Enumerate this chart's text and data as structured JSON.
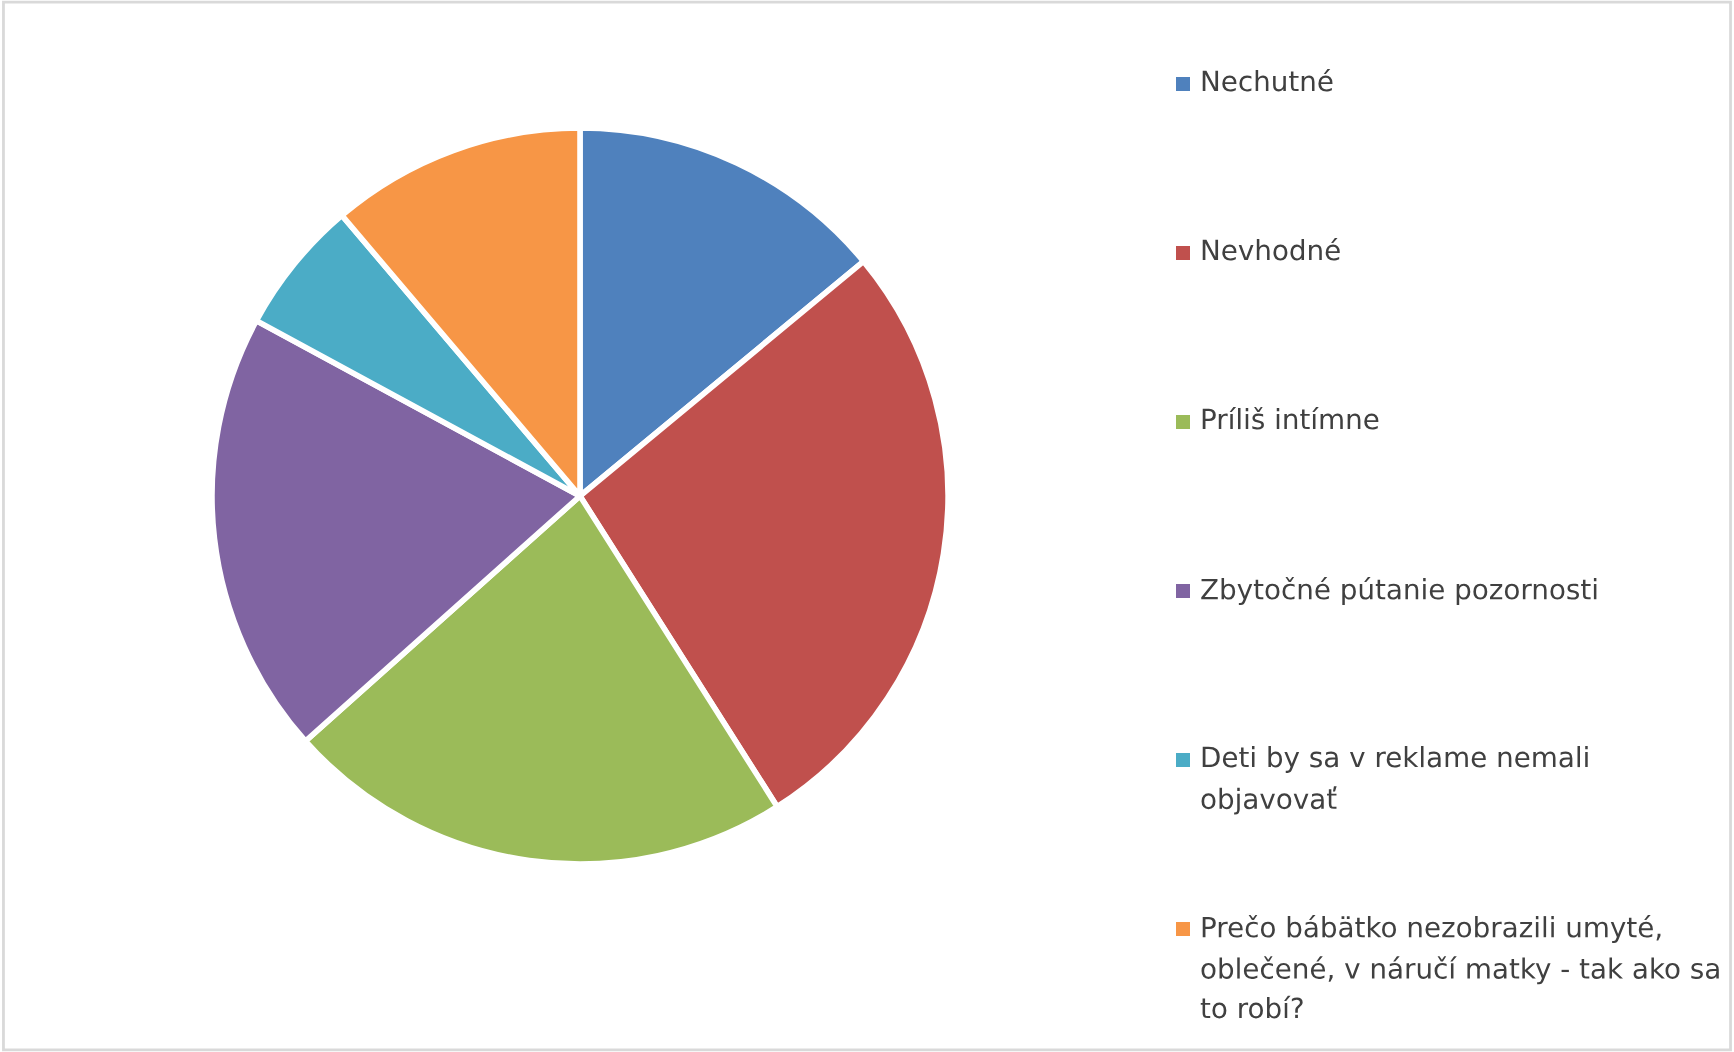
{
  "chart_data": {
    "type": "pie",
    "categories": [
      "Nechutné",
      "Nevhodné",
      "Príliš intímne",
      "Zbytočné pútanie pozornosti",
      "Deti by sa v reklame nemali objavovať",
      "Prečo bábätko nezobrazili umyté, oblečené, v náručí matky - tak ako sa to robí?"
    ],
    "values": [
      14,
      27,
      22.4,
      19.5,
      5.9,
      11.2
    ],
    "colors": [
      "#4f81bd",
      "#c0504d",
      "#9bbb59",
      "#8064a2",
      "#4bacc6",
      "#f79646"
    ],
    "legend": "right"
  }
}
